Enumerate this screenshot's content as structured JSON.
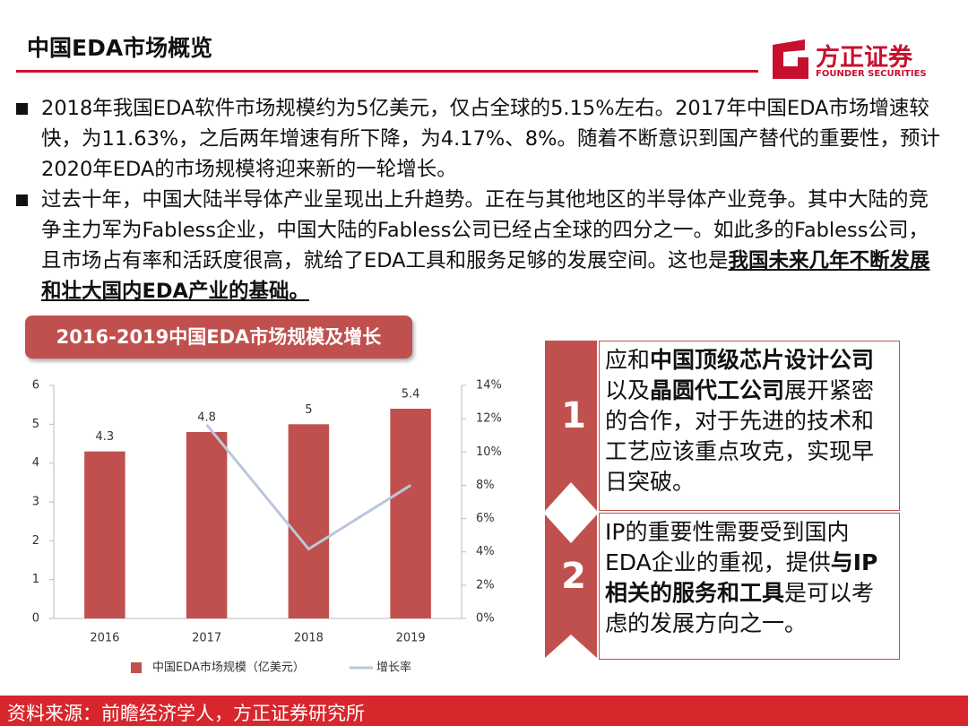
{
  "header": {
    "title": "中国EDA市场概览",
    "logo_name": "方正证券",
    "logo_sub": "FOUNDER SECURITIES"
  },
  "bullets": [
    {
      "text": "2018年我国EDA软件市场规模约为5亿美元，仅占全球的5.15%左右。2017年中国EDA市场增速较快，为11.63%，之后两年增速有所下降，为4.17%、8%。随着不断意识到国产替代的重要性，预计2020年EDA的市场规模将迎来新的一轮增长。"
    },
    {
      "text": "过去十年，中国大陆半导体产业呈现出上升趋势。正在与其他地区的半导体产业竞争。其中大陆的竞争主力军为Fabless企业，中国大陆的Fabless公司已经占全球的四分之一。如此多的Fabless公司，且市场占有率和活跃度很高，就给了EDA工具和服务足够的发展空间。这也是",
      "emphasis": "我国未来几年不断发展和壮大国内EDA产业的基础。"
    }
  ],
  "chart_data": {
    "type": "bar",
    "title": "2016-2019中国EDA市场规模及增长",
    "categories": [
      "2016",
      "2017",
      "2018",
      "2019"
    ],
    "series": [
      {
        "name": "中国EDA市场规模（亿美元）",
        "color": "#c0504d",
        "values": [
          4.3,
          4.8,
          5,
          5.4
        ]
      },
      {
        "name": "增长率",
        "color": "#b9c7dc",
        "type": "line",
        "axis": "y2",
        "values": [
          null,
          11.63,
          4.17,
          8
        ]
      }
    ],
    "ylim": [
      0,
      6
    ],
    "yticks": [
      0,
      1,
      2,
      3,
      4,
      5,
      6
    ],
    "y2lim": [
      0,
      14
    ],
    "y2ticks": [
      {
        "value": 0,
        "label": "0%"
      },
      {
        "value": 2,
        "label": "2%"
      },
      {
        "value": 4,
        "label": "4%"
      },
      {
        "value": 6,
        "label": "6%"
      },
      {
        "value": 8,
        "label": "8%"
      },
      {
        "value": 10,
        "label": "10%"
      },
      {
        "value": 12,
        "label": "12%"
      },
      {
        "value": 14,
        "label": "14%"
      }
    ],
    "legend": "bottom"
  },
  "points": [
    {
      "number": "1",
      "parts": [
        {
          "text": "应和"
        },
        {
          "text": "中国顶级芯片设计公司",
          "bold": true
        },
        {
          "text": "以及"
        },
        {
          "text": "晶圆代工公司",
          "bold": true
        },
        {
          "text": "展开紧密的合作，对于先进的技术和工艺应该重点攻克，实现早日突破。"
        }
      ]
    },
    {
      "number": "2",
      "parts": [
        {
          "text": "IP的重要性需要受到国内EDA企业的重视，提供"
        },
        {
          "text": "与IP相关的服务和工具",
          "bold": true
        },
        {
          "text": "是可以考虑的发展方向之一。"
        }
      ]
    }
  ],
  "source": "资料来源：前瞻经济学人，方正证券研究所"
}
